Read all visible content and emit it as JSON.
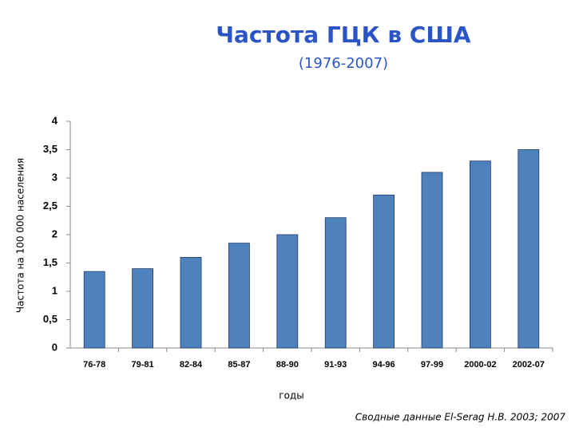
{
  "chart_data": {
    "type": "bar",
    "title": "Частота ГЦК в США",
    "subtitle": "(1976-2007)",
    "y_label": "Частота на 100 000 населения",
    "x_label": "годы",
    "source": "Сводные данные El-Serag H.B. 2003; 2007",
    "categories": [
      "76-78",
      "79-81",
      "82-84",
      "85-87",
      "88-90",
      "91-93",
      "94-96",
      "97-99",
      "2000-02",
      "2002-07"
    ],
    "values": [
      1.35,
      1.4,
      1.6,
      1.85,
      2.0,
      2.3,
      2.7,
      3.1,
      3.3,
      3.5
    ],
    "color": "#4f81bd",
    "ylim": [
      0,
      4
    ],
    "yticks": [
      0,
      {
        "value": 0.5,
        "label": "0,5"
      },
      1,
      {
        "value": 1.5,
        "label": "1,5"
      },
      2,
      {
        "value": 2.5,
        "label": "2,5"
      },
      3,
      {
        "value": 3.5,
        "label": "3,5"
      },
      4
    ],
    "grid": false
  }
}
